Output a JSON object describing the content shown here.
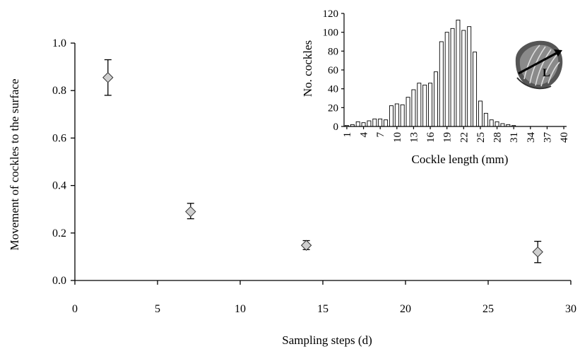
{
  "chart_data": [
    {
      "type": "scatter",
      "title": "",
      "xlabel": "Sampling steps (d)",
      "ylabel": "Movement of cockles to the surface",
      "xlim": [
        0,
        30
      ],
      "ylim": [
        0.0,
        1.0
      ],
      "xticks": [
        "0",
        "5",
        "10",
        "15",
        "20",
        "25",
        "30"
      ],
      "yticks": [
        "0.0",
        "0.2",
        "0.4",
        "0.6",
        "0.8",
        "1.0"
      ],
      "marker": "diamond",
      "marker_color": "#cfcfcf",
      "points": [
        {
          "x": 2,
          "y": 0.855,
          "err_low": 0.78,
          "err_high": 0.93
        },
        {
          "x": 7,
          "y": 0.29,
          "err_low": 0.26,
          "err_high": 0.325
        },
        {
          "x": 14,
          "y": 0.148,
          "err_low": 0.13,
          "err_high": 0.168
        },
        {
          "x": 28,
          "y": 0.12,
          "err_low": 0.075,
          "err_high": 0.165
        }
      ],
      "grid": false
    },
    {
      "type": "bar",
      "title": "",
      "xlabel": "Cockle length (mm)",
      "ylabel": "No. cockles",
      "ylim": [
        0,
        120
      ],
      "yticks": [
        "0",
        "20",
        "40",
        "60",
        "80",
        "100",
        "120"
      ],
      "xticks": [
        "1",
        "4",
        "7",
        "10",
        "13",
        "16",
        "19",
        "22",
        "25",
        "28",
        "31",
        "34",
        "37",
        "40"
      ],
      "categories": [
        1,
        2,
        3,
        4,
        5,
        6,
        7,
        8,
        9,
        10,
        11,
        12,
        13,
        14,
        15,
        16,
        17,
        18,
        19,
        20,
        21,
        22,
        23,
        24,
        25,
        26,
        27,
        28,
        29,
        30,
        31,
        32,
        33,
        34,
        35,
        36,
        37,
        38,
        39,
        40
      ],
      "values": [
        1,
        2,
        5,
        4,
        6,
        8,
        8,
        7,
        22,
        24,
        23,
        31,
        39,
        46,
        44,
        46,
        58,
        90,
        100,
        104,
        113,
        102,
        106,
        79,
        27,
        14,
        7,
        5,
        3,
        2,
        1,
        0,
        0,
        0,
        0,
        0,
        0,
        0,
        0,
        0
      ],
      "bar_color": "#ffffff",
      "bar_stroke": "#000000"
    }
  ],
  "inset_image": {
    "icon": "cockle-shell-icon",
    "label": "L"
  }
}
